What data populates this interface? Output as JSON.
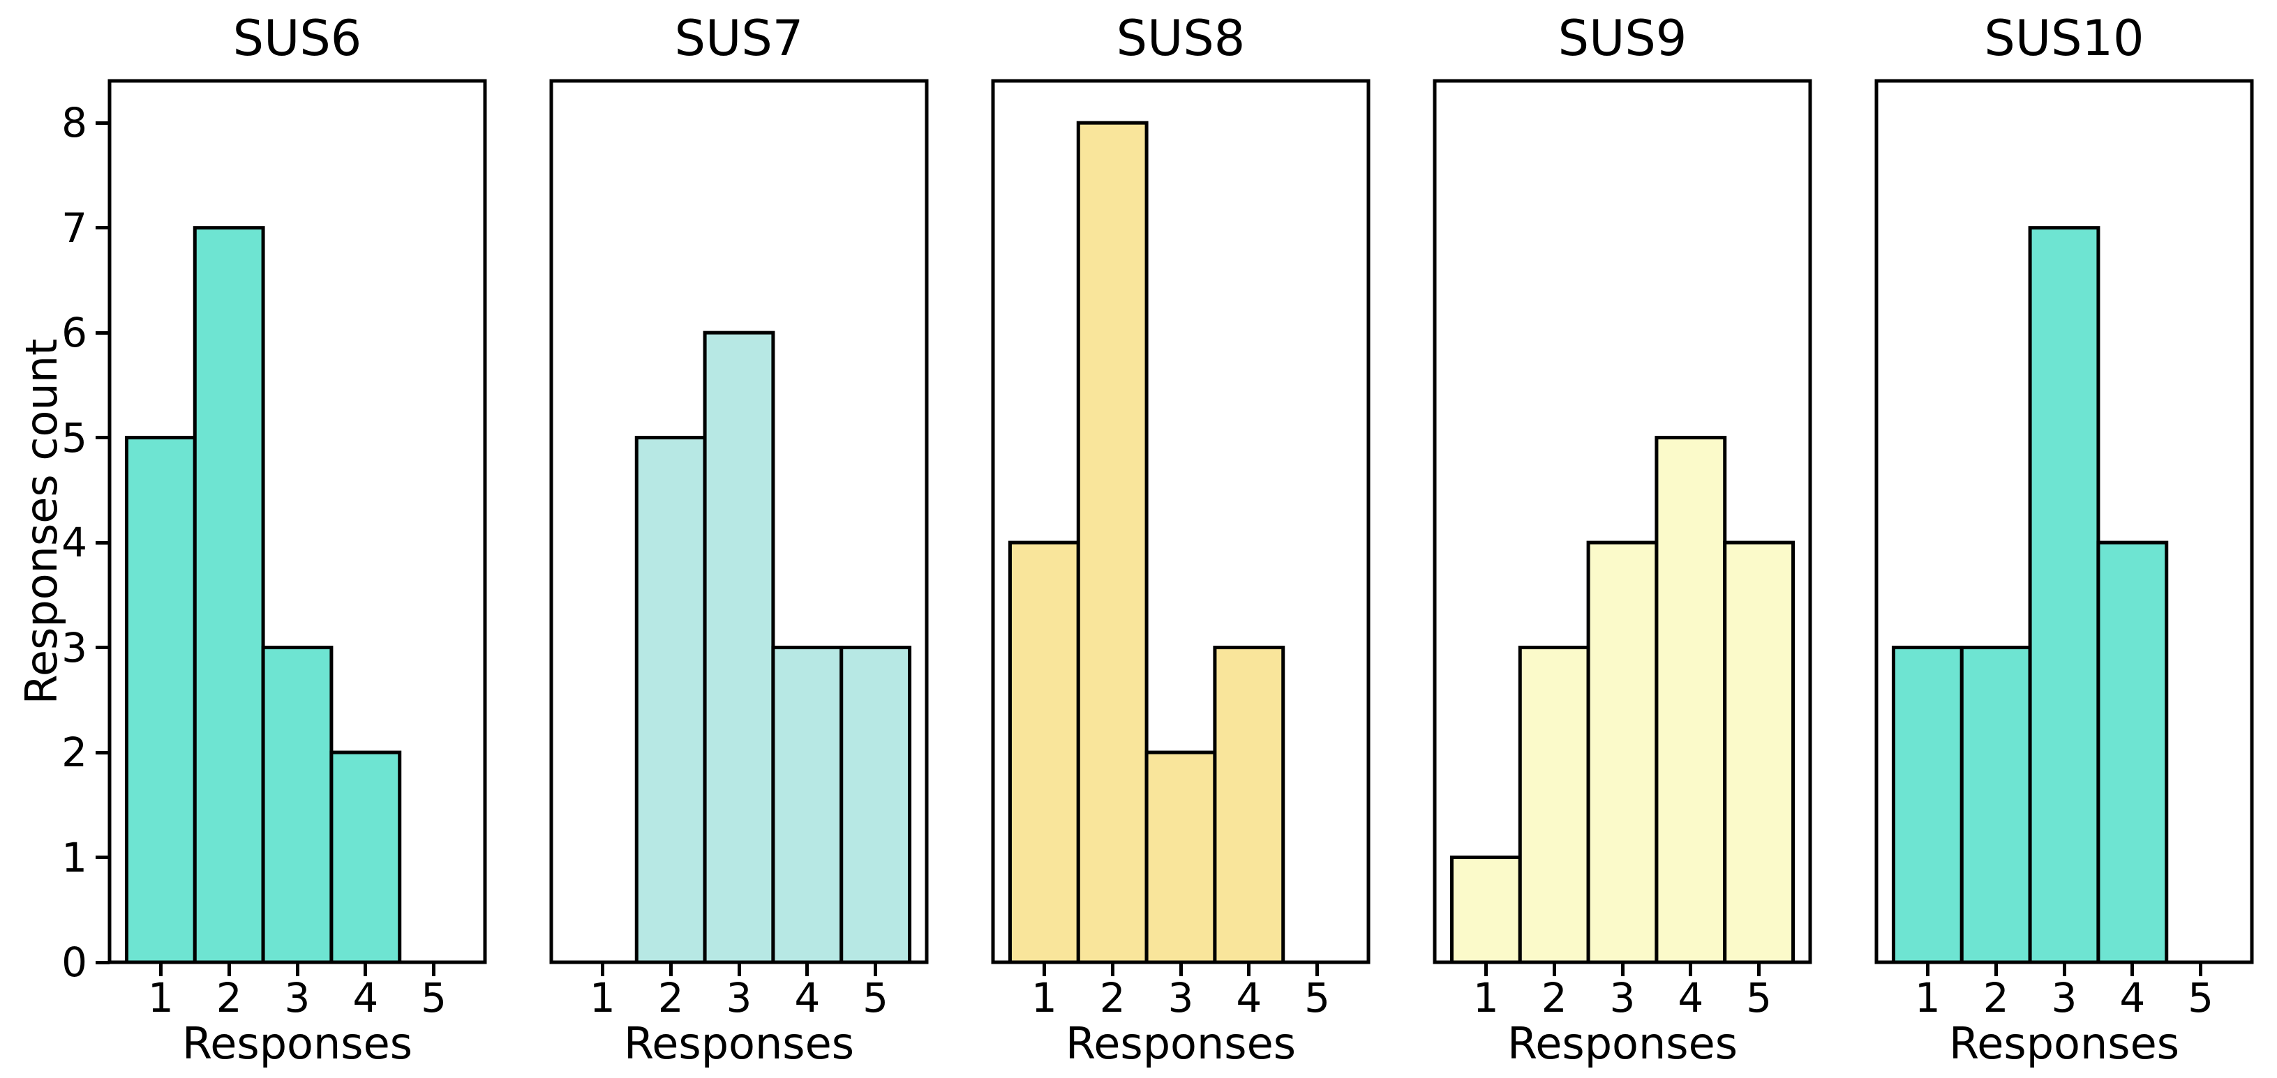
{
  "chart_data": {
    "type": "bar",
    "subtype": "histogram-small-multiples",
    "title": "",
    "xlabel": "Responses",
    "ylabel": "Responses count",
    "categories": [
      1,
      2,
      3,
      4,
      5
    ],
    "xtick_labels": [
      "1",
      "2",
      "3",
      "4",
      "5"
    ],
    "ytick_labels": [
      "0",
      "1",
      "2",
      "3",
      "4",
      "5",
      "6",
      "7",
      "8"
    ],
    "yticks": [
      0,
      1,
      2,
      3,
      4,
      5,
      6,
      7,
      8
    ],
    "ylim": [
      0,
      8.4
    ],
    "xlim": [
      0.25,
      5.75
    ],
    "grid": "off",
    "legend": "none",
    "bar_edge_color": "#000000",
    "series": [
      {
        "name": "SUS6",
        "color": "#6ee4d2",
        "values": [
          5,
          7,
          3,
          2,
          0
        ]
      },
      {
        "name": "SUS7",
        "color": "#b7e8e4",
        "values": [
          0,
          5,
          6,
          3,
          3
        ]
      },
      {
        "name": "SUS8",
        "color": "#f9e59b",
        "values": [
          4,
          8,
          2,
          3,
          0
        ]
      },
      {
        "name": "SUS9",
        "color": "#fbfaca",
        "values": [
          1,
          3,
          4,
          5,
          4
        ]
      },
      {
        "name": "SUS10",
        "color": "#6ee4d2",
        "values": [
          3,
          3,
          7,
          4,
          0
        ]
      }
    ]
  }
}
